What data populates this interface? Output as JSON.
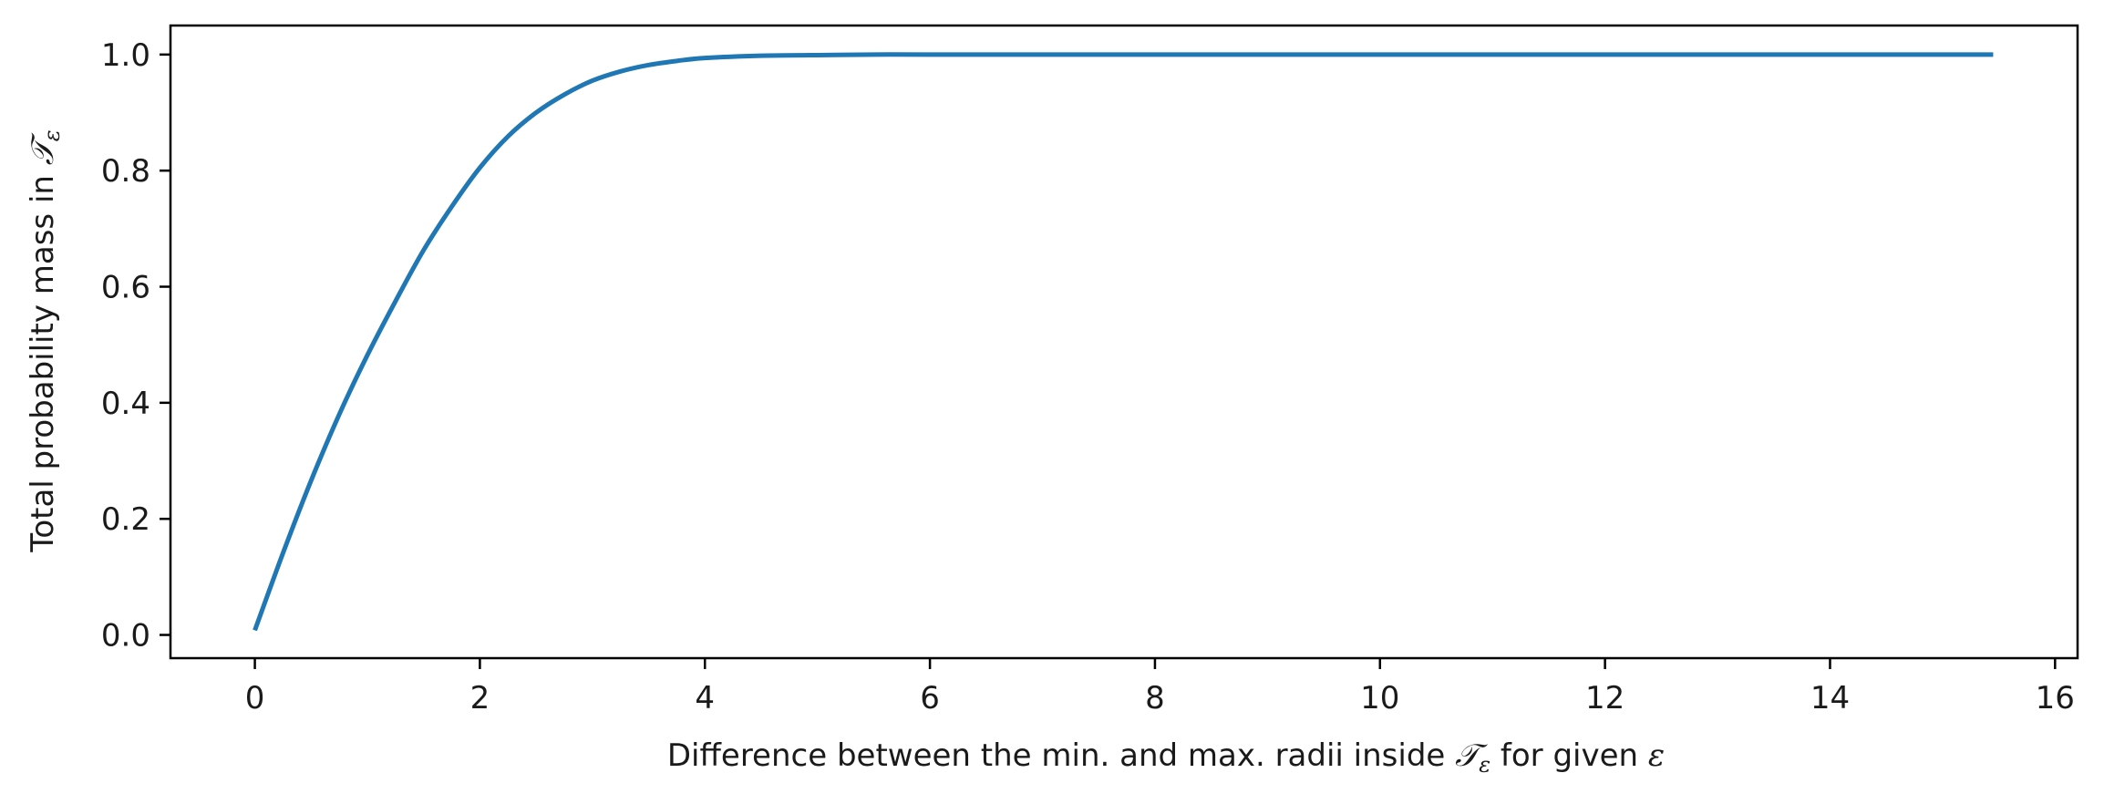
{
  "chart_data": {
    "type": "line",
    "xlabel": "Difference between the min. and max. radii inside 𝒯ε for given ε",
    "xlabel_parts": {
      "before": "Difference between the min. and max. radii inside ",
      "symbol": "𝒯",
      "symbol_sub": "ε",
      "middle": " for given ",
      "epsilon": "ε"
    },
    "ylabel": "Total probability mass in 𝒯ε",
    "ylabel_parts": {
      "before": "Total probability mass in ",
      "symbol": "𝒯",
      "symbol_sub": "ε"
    },
    "xlim": [
      -0.75,
      16.2
    ],
    "ylim": [
      -0.04,
      1.05
    ],
    "x_ticks": [
      0,
      2,
      4,
      6,
      8,
      10,
      12,
      14,
      16
    ],
    "x_tick_labels": [
      "0",
      "2",
      "4",
      "6",
      "8",
      "10",
      "12",
      "14",
      "16"
    ],
    "y_ticks": [
      0.0,
      0.2,
      0.4,
      0.6,
      0.8,
      1.0
    ],
    "y_tick_labels": [
      "0.0",
      "0.2",
      "0.4",
      "0.6",
      "0.8",
      "1.0"
    ],
    "grid": false,
    "line_color": "#1f77b4",
    "series": [
      {
        "x": [
          0.0,
          0.25,
          0.5,
          0.75,
          1.0,
          1.25,
          1.5,
          1.75,
          2.0,
          2.25,
          2.5,
          2.75,
          3.0,
          3.25,
          3.5,
          3.75,
          4.0,
          4.5,
          5.0,
          5.5,
          6.0,
          7.0,
          8.0,
          9.0,
          10.0,
          11.0,
          12.0,
          13.0,
          14.0,
          15.0,
          15.45
        ],
        "y": [
          0.008,
          0.141,
          0.266,
          0.38,
          0.482,
          0.575,
          0.663,
          0.738,
          0.805,
          0.859,
          0.9,
          0.931,
          0.955,
          0.971,
          0.982,
          0.989,
          0.994,
          0.998,
          0.999,
          1.0,
          1.0,
          1.0,
          1.0,
          1.0,
          1.0,
          1.0,
          1.0,
          1.0,
          1.0,
          1.0,
          1.0
        ]
      }
    ]
  }
}
